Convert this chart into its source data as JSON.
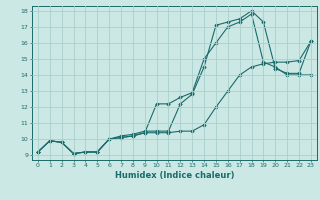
{
  "xlabel": "Humidex (Indice chaleur)",
  "bg_color": "#cce8e5",
  "grid_color": "#aacfcc",
  "line_color": "#1a6b6b",
  "xlim": [
    -0.5,
    23.5
  ],
  "ylim": [
    8.7,
    18.3
  ],
  "xticks": [
    0,
    1,
    2,
    3,
    4,
    5,
    6,
    7,
    8,
    9,
    10,
    11,
    12,
    13,
    14,
    15,
    16,
    17,
    18,
    19,
    20,
    21,
    22,
    23
  ],
  "yticks": [
    9,
    10,
    11,
    12,
    13,
    14,
    15,
    16,
    17,
    18
  ],
  "series": [
    {
      "x": [
        0,
        1,
        2,
        3,
        4,
        5,
        6,
        7,
        8,
        9,
        10,
        11,
        12,
        13,
        14,
        15,
        16,
        17,
        18,
        19,
        20,
        21,
        22,
        23
      ],
      "y": [
        9.2,
        9.9,
        9.8,
        9.1,
        9.2,
        9.2,
        10.0,
        10.2,
        10.3,
        10.5,
        10.5,
        10.5,
        12.2,
        12.8,
        14.5,
        17.1,
        17.3,
        17.5,
        18.0,
        17.3,
        14.4,
        14.1,
        14.1,
        16.1
      ]
    },
    {
      "x": [
        0,
        1,
        2,
        3,
        4,
        5,
        6,
        7,
        8,
        9,
        10,
        11,
        12,
        13,
        14,
        15,
        16,
        17,
        18,
        19,
        20,
        21,
        22,
        23
      ],
      "y": [
        9.2,
        9.9,
        9.8,
        9.1,
        9.2,
        9.2,
        10.0,
        10.1,
        10.2,
        10.4,
        12.2,
        12.2,
        12.6,
        12.9,
        15.0,
        16.0,
        17.0,
        17.3,
        17.8,
        14.8,
        14.5,
        14.0,
        14.0,
        14.0
      ]
    },
    {
      "x": [
        0,
        1,
        2,
        3,
        4,
        5,
        6,
        7,
        8,
        9,
        10,
        11,
        12,
        13,
        14,
        15,
        16,
        17,
        18,
        19,
        20,
        21,
        22,
        23
      ],
      "y": [
        9.2,
        9.9,
        9.8,
        9.1,
        9.2,
        9.2,
        10.0,
        10.1,
        10.2,
        10.4,
        10.4,
        10.4,
        10.5,
        10.5,
        10.9,
        12.0,
        13.0,
        14.0,
        14.5,
        14.7,
        14.8,
        14.8,
        14.9,
        16.1
      ]
    }
  ]
}
